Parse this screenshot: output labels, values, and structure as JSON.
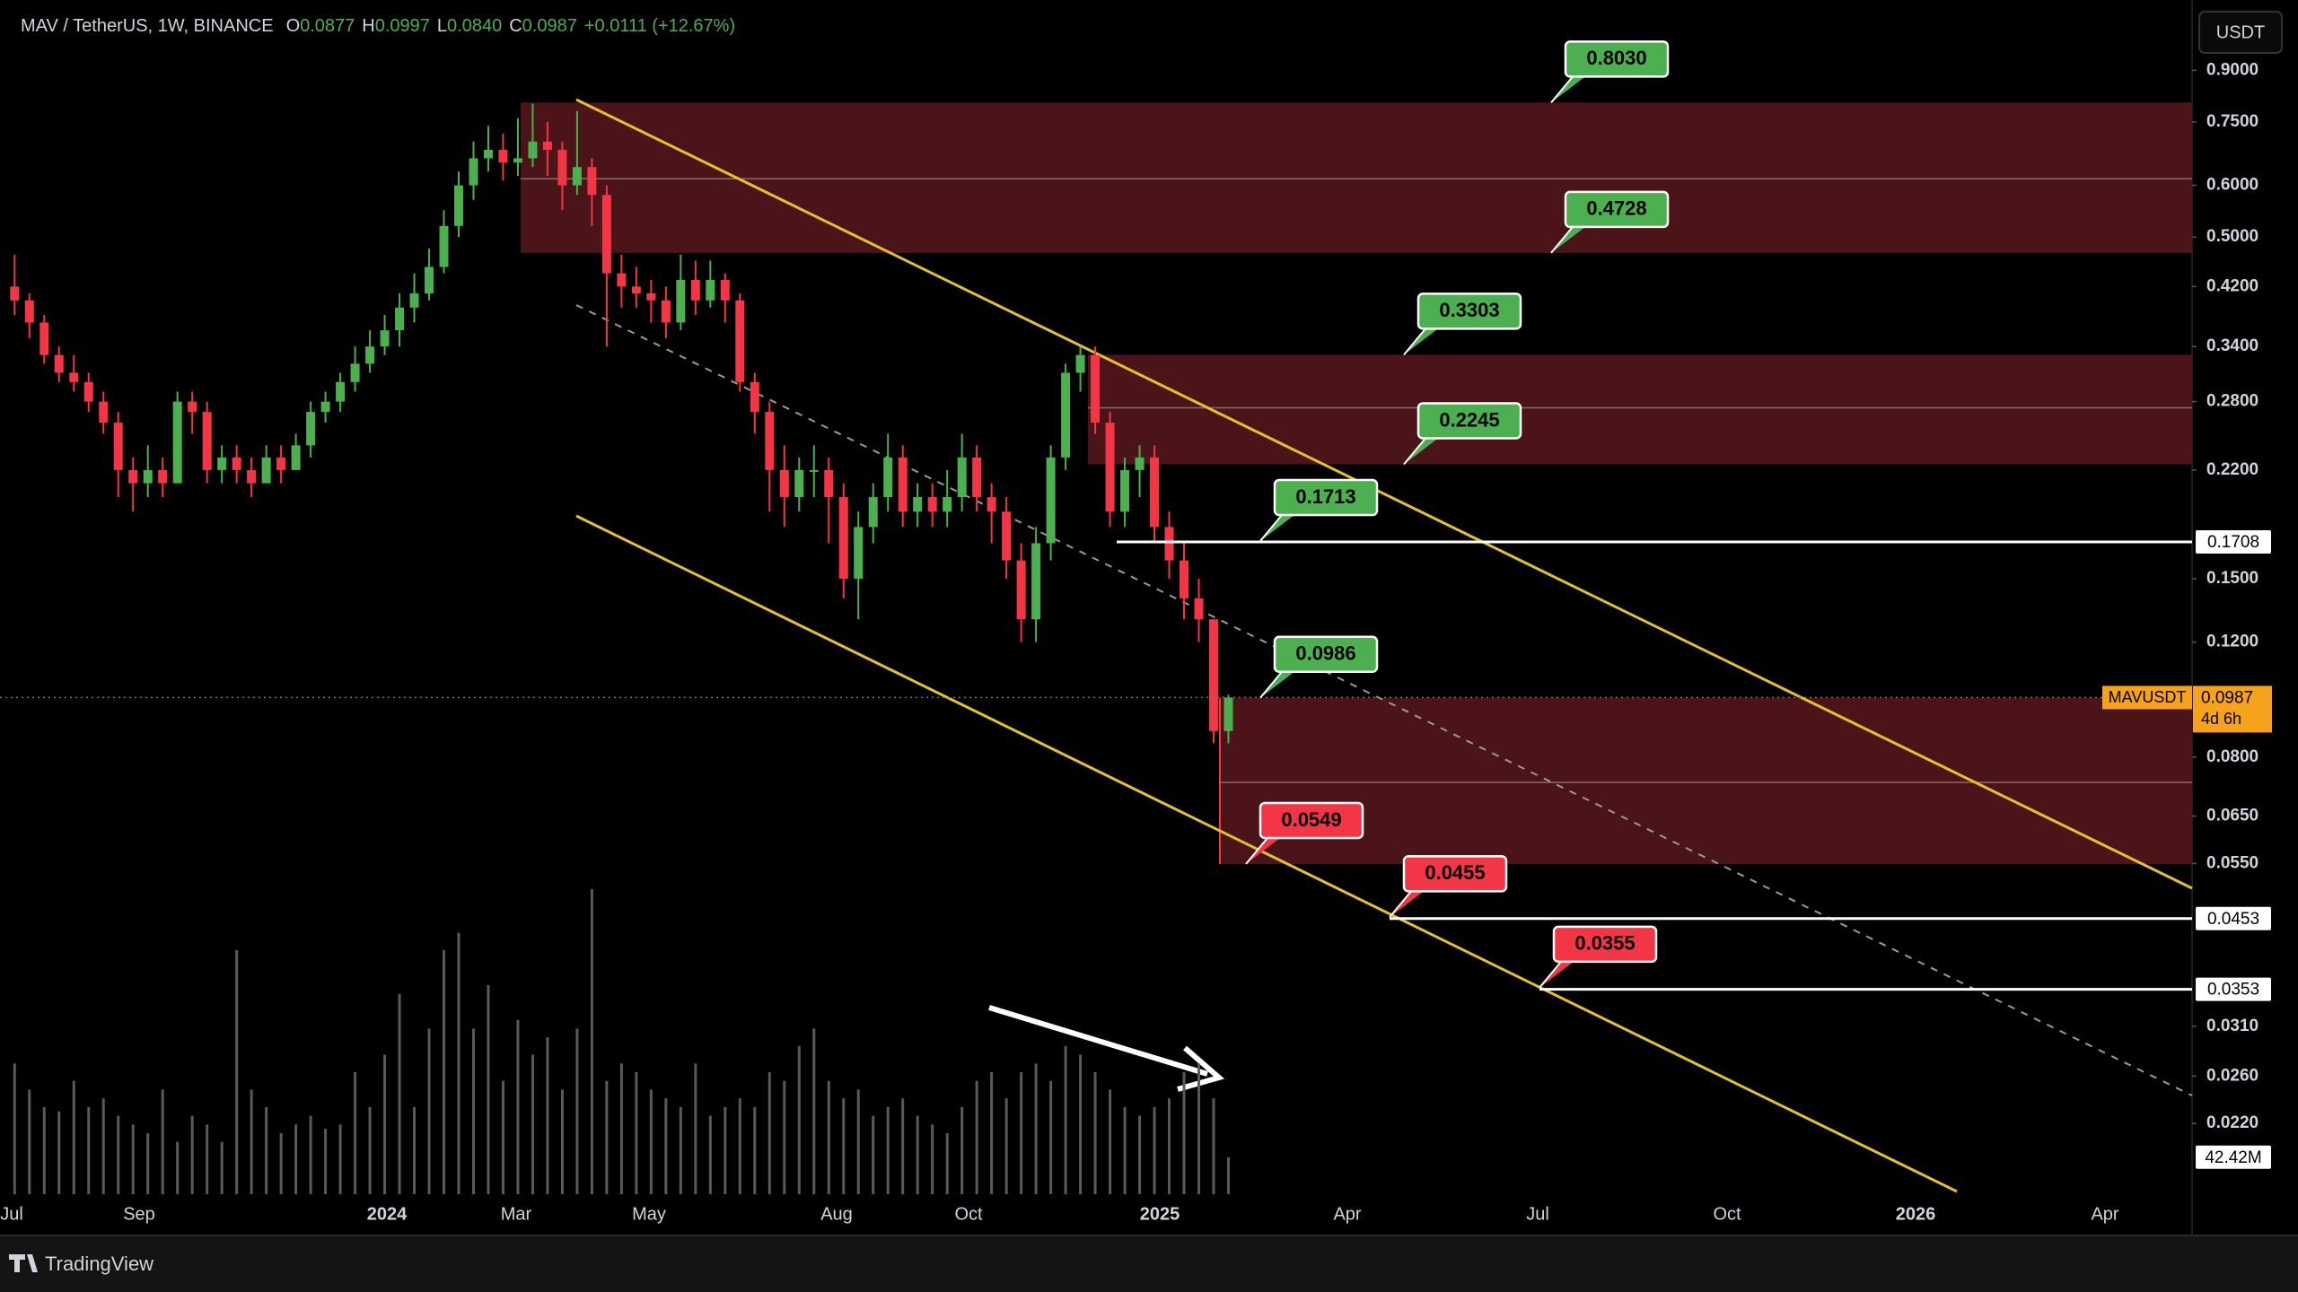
{
  "header": {
    "symbol": "MAV / TetherUS, 1W, BINANCE",
    "o_label": "O",
    "o": "0.0877",
    "h_label": "H",
    "h": "0.0997",
    "l_label": "L",
    "l": "0.0840",
    "c_label": "C",
    "c": "0.0987",
    "change": "+0.0111 (+12.67%)"
  },
  "currency_button": "USDT",
  "brand": "TradingView",
  "chart_data": {
    "type": "candlestick",
    "log_scale": true,
    "ylim": [
      0.01715,
      1.124
    ],
    "yticks": [
      {
        "value": 0.9,
        "label": "0.9000"
      },
      {
        "value": 0.75,
        "label": "0.7500"
      },
      {
        "value": 0.6,
        "label": "0.6000"
      },
      {
        "value": 0.5,
        "label": "0.5000"
      },
      {
        "value": 0.42,
        "label": "0.4200"
      },
      {
        "value": 0.34,
        "label": "0.3400"
      },
      {
        "value": 0.28,
        "label": "0.2800"
      },
      {
        "value": 0.22,
        "label": "0.2200"
      },
      {
        "value": 0.15,
        "label": "0.1500"
      },
      {
        "value": 0.12,
        "label": "0.1200"
      },
      {
        "value": 0.08,
        "label": "0.0800"
      },
      {
        "value": 0.065,
        "label": "0.0650"
      },
      {
        "value": 0.055,
        "label": "0.0550"
      },
      {
        "value": 0.031,
        "label": "0.0310"
      },
      {
        "value": 0.026,
        "label": "0.0260"
      },
      {
        "value": 0.022,
        "label": "0.0220"
      }
    ],
    "x_labels": [
      "Jul",
      "Sep",
      "2024",
      "Mar",
      "May",
      "Aug",
      "Oct",
      "2025",
      "Apr",
      "Jul",
      "Oct",
      "2026",
      "Apr"
    ],
    "up_color": "#4caf50",
    "down_color": "#f23645",
    "candles": [
      [
        0.42,
        0.47,
        0.38,
        0.4
      ],
      [
        0.4,
        0.41,
        0.35,
        0.37
      ],
      [
        0.37,
        0.38,
        0.32,
        0.33
      ],
      [
        0.33,
        0.34,
        0.3,
        0.31
      ],
      [
        0.31,
        0.33,
        0.29,
        0.3
      ],
      [
        0.3,
        0.31,
        0.27,
        0.28
      ],
      [
        0.28,
        0.29,
        0.25,
        0.26
      ],
      [
        0.26,
        0.27,
        0.2,
        0.22
      ],
      [
        0.22,
        0.23,
        0.19,
        0.21
      ],
      [
        0.21,
        0.24,
        0.2,
        0.22
      ],
      [
        0.22,
        0.23,
        0.2,
        0.21
      ],
      [
        0.21,
        0.29,
        0.21,
        0.28
      ],
      [
        0.28,
        0.29,
        0.25,
        0.27
      ],
      [
        0.27,
        0.28,
        0.21,
        0.22
      ],
      [
        0.22,
        0.24,
        0.21,
        0.23
      ],
      [
        0.23,
        0.24,
        0.21,
        0.22
      ],
      [
        0.22,
        0.23,
        0.2,
        0.21
      ],
      [
        0.21,
        0.24,
        0.21,
        0.23
      ],
      [
        0.23,
        0.24,
        0.21,
        0.22
      ],
      [
        0.22,
        0.25,
        0.22,
        0.24
      ],
      [
        0.24,
        0.28,
        0.23,
        0.27
      ],
      [
        0.27,
        0.29,
        0.26,
        0.28
      ],
      [
        0.28,
        0.31,
        0.27,
        0.3
      ],
      [
        0.3,
        0.34,
        0.29,
        0.32
      ],
      [
        0.32,
        0.36,
        0.31,
        0.34
      ],
      [
        0.34,
        0.38,
        0.33,
        0.36
      ],
      [
        0.36,
        0.41,
        0.34,
        0.39
      ],
      [
        0.39,
        0.44,
        0.37,
        0.41
      ],
      [
        0.41,
        0.48,
        0.4,
        0.45
      ],
      [
        0.45,
        0.55,
        0.44,
        0.52
      ],
      [
        0.52,
        0.63,
        0.5,
        0.6
      ],
      [
        0.6,
        0.7,
        0.57,
        0.66
      ],
      [
        0.66,
        0.74,
        0.63,
        0.68
      ],
      [
        0.68,
        0.72,
        0.61,
        0.65
      ],
      [
        0.65,
        0.76,
        0.62,
        0.66
      ],
      [
        0.66,
        0.8,
        0.64,
        0.7
      ],
      [
        0.7,
        0.75,
        0.62,
        0.68
      ],
      [
        0.68,
        0.7,
        0.55,
        0.6
      ],
      [
        0.6,
        0.78,
        0.58,
        0.64
      ],
      [
        0.64,
        0.66,
        0.52,
        0.58
      ],
      [
        0.58,
        0.6,
        0.34,
        0.44
      ],
      [
        0.44,
        0.47,
        0.39,
        0.42
      ],
      [
        0.42,
        0.45,
        0.39,
        0.41
      ],
      [
        0.41,
        0.43,
        0.37,
        0.4
      ],
      [
        0.4,
        0.42,
        0.35,
        0.37
      ],
      [
        0.37,
        0.47,
        0.36,
        0.43
      ],
      [
        0.43,
        0.46,
        0.38,
        0.4
      ],
      [
        0.4,
        0.46,
        0.39,
        0.43
      ],
      [
        0.43,
        0.44,
        0.37,
        0.4
      ],
      [
        0.4,
        0.41,
        0.29,
        0.3
      ],
      [
        0.3,
        0.31,
        0.25,
        0.27
      ],
      [
        0.27,
        0.28,
        0.19,
        0.22
      ],
      [
        0.22,
        0.24,
        0.18,
        0.2
      ],
      [
        0.2,
        0.23,
        0.19,
        0.22
      ],
      [
        0.22,
        0.24,
        0.2,
        0.22
      ],
      [
        0.22,
        0.23,
        0.17,
        0.2
      ],
      [
        0.2,
        0.21,
        0.14,
        0.15
      ],
      [
        0.15,
        0.19,
        0.13,
        0.18
      ],
      [
        0.18,
        0.21,
        0.17,
        0.2
      ],
      [
        0.2,
        0.25,
        0.19,
        0.23
      ],
      [
        0.23,
        0.24,
        0.18,
        0.19
      ],
      [
        0.19,
        0.21,
        0.18,
        0.2
      ],
      [
        0.2,
        0.21,
        0.18,
        0.19
      ],
      [
        0.19,
        0.22,
        0.18,
        0.2
      ],
      [
        0.2,
        0.25,
        0.19,
        0.23
      ],
      [
        0.23,
        0.24,
        0.19,
        0.2
      ],
      [
        0.2,
        0.21,
        0.17,
        0.19
      ],
      [
        0.19,
        0.2,
        0.15,
        0.16
      ],
      [
        0.16,
        0.17,
        0.12,
        0.13
      ],
      [
        0.13,
        0.18,
        0.12,
        0.17
      ],
      [
        0.17,
        0.24,
        0.16,
        0.23
      ],
      [
        0.23,
        0.32,
        0.22,
        0.31
      ],
      [
        0.31,
        0.34,
        0.29,
        0.33
      ],
      [
        0.33,
        0.34,
        0.25,
        0.26
      ],
      [
        0.26,
        0.27,
        0.18,
        0.19
      ],
      [
        0.19,
        0.23,
        0.18,
        0.22
      ],
      [
        0.22,
        0.24,
        0.2,
        0.23
      ],
      [
        0.23,
        0.24,
        0.17,
        0.18
      ],
      [
        0.18,
        0.19,
        0.15,
        0.16
      ],
      [
        0.16,
        0.17,
        0.13,
        0.14
      ],
      [
        0.14,
        0.15,
        0.12,
        0.13
      ],
      [
        0.13,
        0.13,
        0.084,
        0.0877
      ],
      [
        0.0877,
        0.0997,
        0.084,
        0.0987
      ]
    ],
    "volume": [
      150,
      120,
      100,
      95,
      130,
      100,
      110,
      90,
      80,
      70,
      120,
      60,
      90,
      80,
      60,
      280,
      120,
      100,
      70,
      80,
      90,
      75,
      80,
      140,
      100,
      160,
      230,
      100,
      190,
      280,
      300,
      190,
      240,
      130,
      200,
      160,
      180,
      120,
      190,
      350,
      130,
      150,
      140,
      120,
      110,
      100,
      150,
      90,
      100,
      110,
      100,
      140,
      130,
      170,
      190,
      130,
      110,
      120,
      90,
      100,
      110,
      90,
      80,
      70,
      100,
      130,
      140,
      110,
      140,
      150,
      130,
      170,
      160,
      140,
      120,
      100,
      90,
      100,
      110,
      140,
      150,
      110,
      42.42
    ],
    "volume_label": "42.42M",
    "zones": [
      {
        "range": [
          0.4728,
          0.803
        ],
        "mid": 0.614
      },
      {
        "range": [
          0.2245,
          0.3303
        ],
        "mid": 0.274
      },
      {
        "range": [
          0.0549,
          0.0986
        ],
        "mid": 0.0732
      }
    ],
    "zone_color": "#4a1419",
    "levels": [
      {
        "value": 0.1708,
        "label": "0.1708"
      },
      {
        "value": 0.0453,
        "label": "0.0453"
      },
      {
        "value": 0.0353,
        "label": "0.0353"
      }
    ],
    "annotations": [
      {
        "value": 0.803,
        "label": "0.8030",
        "color": "#4caf50"
      },
      {
        "value": 0.4728,
        "label": "0.4728",
        "color": "#4caf50"
      },
      {
        "value": 0.3303,
        "label": "0.3303",
        "color": "#4caf50"
      },
      {
        "value": 0.2245,
        "label": "0.2245",
        "color": "#4caf50"
      },
      {
        "value": 0.1713,
        "label": "0.1713",
        "color": "#4caf50"
      },
      {
        "value": 0.0986,
        "label": "0.0986",
        "color": "#4caf50"
      },
      {
        "value": 0.0549,
        "label": "0.0549",
        "color": "#f23645"
      },
      {
        "value": 0.0455,
        "label": "0.0455",
        "color": "#f23645"
      },
      {
        "value": 0.0355,
        "label": "0.0355",
        "color": "#f23645"
      }
    ],
    "last_price": {
      "value": 0.0987,
      "symbol": "MAVUSDT",
      "label": "0.0987",
      "countdown": "4d 6h",
      "color": "#f7a21b"
    }
  }
}
